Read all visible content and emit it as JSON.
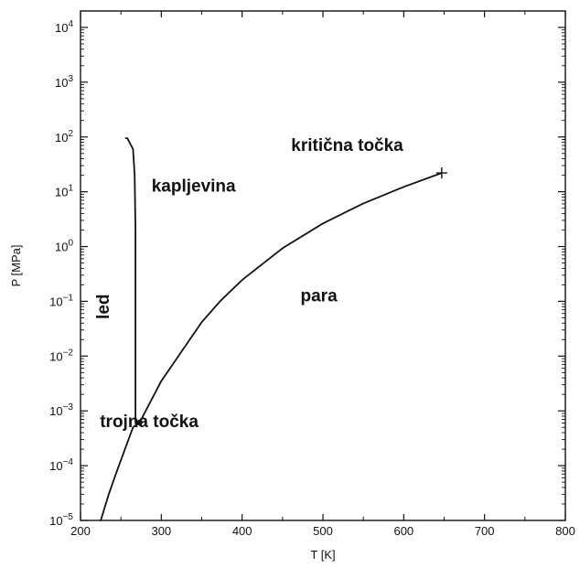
{
  "chart_data": {
    "type": "line",
    "title": "",
    "xlabel": "T [K]",
    "ylabel": "P [MPa]",
    "xlim": [
      200,
      800
    ],
    "ylim_log10": [
      -5,
      4.3
    ],
    "y_scale": "log",
    "x_ticks": [
      200,
      300,
      400,
      500,
      600,
      700,
      800
    ],
    "x_tick_labels": [
      "200",
      "300",
      "400",
      "500",
      "600",
      "700",
      "800"
    ],
    "y_ticks_exp": [
      -5,
      -4,
      -3,
      -2,
      -1,
      0,
      1,
      2,
      3,
      4
    ],
    "y_tick_labels": [
      {
        "base": "10",
        "exp": "−5"
      },
      {
        "base": "10",
        "exp": "−4"
      },
      {
        "base": "10",
        "exp": "−3"
      },
      {
        "base": "10",
        "exp": "−2"
      },
      {
        "base": "10",
        "exp": "−1"
      },
      {
        "base": "10",
        "exp": "0"
      },
      {
        "base": "10",
        "exp": "1"
      },
      {
        "base": "10",
        "exp": "2"
      },
      {
        "base": "10",
        "exp": "3"
      },
      {
        "base": "10",
        "exp": "4"
      }
    ],
    "grid": false,
    "series": [
      {
        "id": "vaporization-curve",
        "color": "#111111",
        "points": [
          [
            225,
            1e-05
          ],
          [
            235,
            3e-05
          ],
          [
            245,
            8e-05
          ],
          [
            255,
            0.0002
          ],
          [
            265,
            0.0005
          ],
          [
            273.16,
            0.000612
          ],
          [
            300,
            0.0035
          ],
          [
            350,
            0.0416
          ],
          [
            373,
            0.1013
          ],
          [
            400,
            0.2456
          ],
          [
            450,
            0.932
          ],
          [
            500,
            2.64
          ],
          [
            550,
            6.12
          ],
          [
            600,
            12.3
          ],
          [
            647,
            22.06
          ]
        ]
      },
      {
        "id": "melting-curve",
        "color": "#111111",
        "points": [
          [
            268,
            0.0006
          ],
          [
            268,
            0.02
          ],
          [
            268,
            2
          ],
          [
            267,
            20
          ],
          [
            265,
            60
          ],
          [
            258,
            95
          ],
          [
            256,
            95
          ]
        ]
      }
    ],
    "markers": [
      {
        "id": "triple-point",
        "x": 273.16,
        "y": 0.000612,
        "shape": "dot"
      },
      {
        "id": "critical-point",
        "x": 647,
        "y": 22.06,
        "shape": "plus"
      }
    ],
    "annotations": [
      {
        "id": "label-kapljevina",
        "text": "kapljevina",
        "x": 340,
        "y": 10,
        "rotate": 0
      },
      {
        "id": "label-para",
        "text": "para",
        "x": 495,
        "y": 0.1,
        "rotate": 0
      },
      {
        "id": "label-led",
        "text": "led",
        "x": 235,
        "y": 0.08,
        "rotate": -90
      },
      {
        "id": "label-kriticna-tocka",
        "text": "kritična točka",
        "x": 530,
        "y": 56,
        "rotate": 0
      },
      {
        "id": "label-trojna-tocka",
        "text": "trojna točka",
        "x": 285,
        "y": 0.0005,
        "rotate": 0
      }
    ]
  }
}
